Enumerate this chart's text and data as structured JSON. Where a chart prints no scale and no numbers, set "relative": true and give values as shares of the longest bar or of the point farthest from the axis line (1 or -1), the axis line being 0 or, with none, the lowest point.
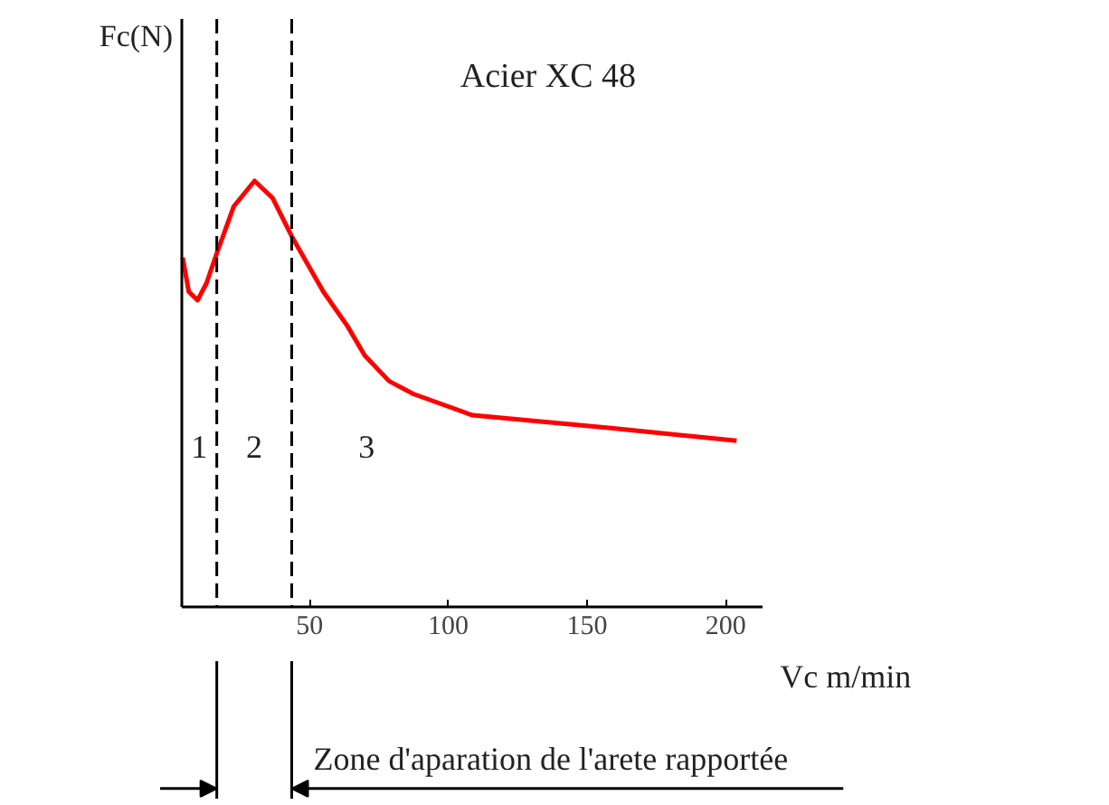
{
  "chart_data": {
    "type": "line",
    "title": "Acier XC 48",
    "xlabel": "Vc m/min",
    "ylabel": "Fc(N)",
    "relative": true,
    "x": [
      4.3,
      6.5,
      9.7,
      12.9,
      16.6,
      22.7,
      30.2,
      36.7,
      43.6,
      55,
      63.6,
      69.9,
      78.7,
      87.4,
      108.7,
      158.6,
      203.9
    ],
    "series": [
      {
        "color": "#ff0000",
        "values": [
          0.82,
          0.74,
          0.72,
          0.76,
          0.83,
          0.94,
          1,
          0.96,
          0.87,
          0.74,
          0.66,
          0.59,
          0.53,
          0.5,
          0.45,
          0.42,
          0.39
        ]
      }
    ],
    "xlim": [
      4,
      213
    ],
    "xticks": [
      50,
      100,
      150,
      200
    ],
    "grid": false,
    "marker": "none",
    "line_style": "solid",
    "ref_lines": [
      {
        "axis": "x",
        "value": 16.6,
        "line_style": "dashed",
        "color": "#000000"
      },
      {
        "axis": "x",
        "value": 43.6,
        "line_style": "dashed",
        "color": "#000000"
      }
    ],
    "annotations": [
      "1",
      "2",
      "3",
      "Zone d'aparation de l'arete rapportée"
    ]
  }
}
